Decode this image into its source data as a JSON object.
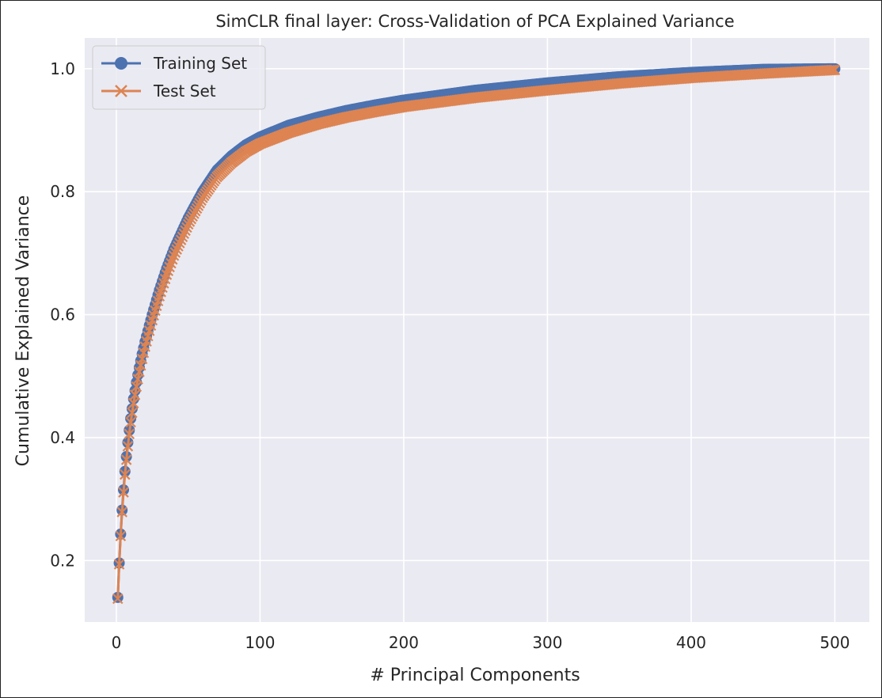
{
  "chart_data": {
    "type": "line",
    "title": "SimCLR final layer: Cross-Validation of PCA Explained Variance",
    "xlabel": "# Principal Components",
    "ylabel": "Cumulative Explained Variance",
    "xlim": [
      -22,
      524
    ],
    "ylim": [
      0.1,
      1.05
    ],
    "xticks": [
      0,
      100,
      200,
      300,
      400,
      500
    ],
    "xtick_labels": [
      "0",
      "100",
      "200",
      "300",
      "400",
      "500"
    ],
    "yticks": [
      0.2,
      0.4,
      0.6,
      0.8,
      1.0
    ],
    "ytick_labels": [
      "0.2",
      "0.4",
      "0.6",
      "0.8",
      "1.0"
    ],
    "grid": true,
    "legend_position": "top-left",
    "series": [
      {
        "name": "Training Set",
        "marker": "circle",
        "color": "#4C72B0",
        "x": [
          1,
          2,
          3,
          4,
          5,
          6,
          7,
          8,
          9,
          10,
          12,
          14,
          16,
          18,
          20,
          25,
          30,
          35,
          40,
          50,
          60,
          70,
          80,
          90,
          100,
          120,
          140,
          160,
          180,
          200,
          250,
          300,
          350,
          400,
          450,
          500
        ],
        "values": [
          0.14,
          0.196,
          0.243,
          0.282,
          0.315,
          0.345,
          0.369,
          0.392,
          0.412,
          0.431,
          0.463,
          0.49,
          0.514,
          0.536,
          0.556,
          0.6,
          0.64,
          0.675,
          0.706,
          0.757,
          0.8,
          0.835,
          0.858,
          0.876,
          0.889,
          0.908,
          0.921,
          0.932,
          0.941,
          0.949,
          0.965,
          0.977,
          0.987,
          0.994,
          0.999,
          1.0
        ]
      },
      {
        "name": "Test Set",
        "marker": "x",
        "color": "#DD8452",
        "x": [
          1,
          2,
          3,
          4,
          5,
          6,
          7,
          8,
          9,
          10,
          12,
          14,
          16,
          18,
          20,
          25,
          30,
          35,
          40,
          50,
          60,
          70,
          80,
          90,
          100,
          120,
          140,
          160,
          180,
          200,
          250,
          300,
          350,
          400,
          450,
          500
        ],
        "values": [
          0.138,
          0.194,
          0.24,
          0.279,
          0.311,
          0.34,
          0.364,
          0.386,
          0.406,
          0.425,
          0.456,
          0.483,
          0.507,
          0.528,
          0.548,
          0.591,
          0.63,
          0.665,
          0.696,
          0.747,
          0.79,
          0.824,
          0.847,
          0.865,
          0.878,
          0.896,
          0.91,
          0.921,
          0.93,
          0.938,
          0.953,
          0.965,
          0.976,
          0.985,
          0.992,
          0.998
        ]
      }
    ]
  },
  "legend": {
    "items": [
      {
        "label": "Training Set"
      },
      {
        "label": "Test Set"
      }
    ]
  },
  "colors": {
    "plot_background": "#EAEAF2",
    "grid": "#FFFFFF",
    "training": "#4C72B0",
    "test": "#DD8452"
  }
}
